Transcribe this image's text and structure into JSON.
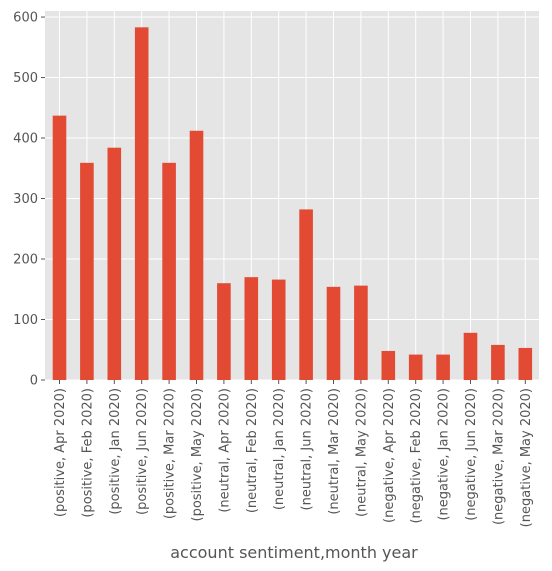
{
  "chart_data": {
    "type": "bar",
    "title": "",
    "xlabel": "account sentiment,month year",
    "ylabel": "",
    "ylim": [
      0,
      610
    ],
    "yticks": [
      0,
      100,
      200,
      300,
      400,
      500,
      600
    ],
    "grid": true,
    "legend": "none",
    "colors": {
      "bar": "#E24A33",
      "plot_background": "#E5E5E5",
      "grid": "#FFFFFF",
      "text": "#555555"
    },
    "categories": [
      "(positive, Apr 2020)",
      "(positive, Feb 2020)",
      "(positive, Jan 2020)",
      "(positive, Jun 2020)",
      "(positive, Mar 2020)",
      "(positive, May 2020)",
      "(neutral, Apr 2020)",
      "(neutral, Feb 2020)",
      "(neutral, Jan 2020)",
      "(neutral, Jun 2020)",
      "(neutral, Mar 2020)",
      "(neutral, May 2020)",
      "(negative, Apr 2020)",
      "(negative, Feb 2020)",
      "(negative, Jan 2020)",
      "(negative, Jun 2020)",
      "(negative, Mar 2020)",
      "(negative, May 2020)"
    ],
    "values": [
      437,
      359,
      384,
      583,
      359,
      412,
      160,
      170,
      166,
      282,
      154,
      156,
      48,
      42,
      42,
      78,
      58,
      53
    ]
  }
}
